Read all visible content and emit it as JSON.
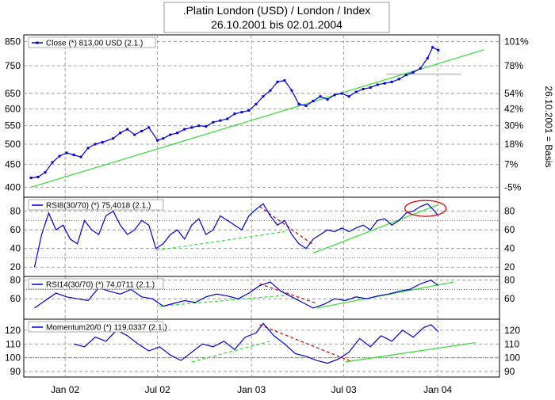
{
  "title": {
    "line1": ".Platin London (USD) / London / Index",
    "line2": "26.10.2001 bis 02.01.2004"
  },
  "right_axis_label": "26.10.2001 = Basis",
  "x_axis": {
    "labels": [
      "Jan 02",
      "Jul 02",
      "Jan 03",
      "Jul 03",
      "Jan 04"
    ]
  },
  "colors": {
    "price_line": "#0000cc",
    "trend_green": "#33dd33",
    "trend_red": "#cc0000",
    "grid": "#888888",
    "reference_gray": "#bbbbbb"
  },
  "chart_data": [
    {
      "type": "line",
      "panel": "price",
      "legend": "Close (*) 813,00 USD (2.1.)",
      "y_scale": "log",
      "ylim": [
        380,
        880
      ],
      "left_ticks": [
        400,
        450,
        500,
        550,
        600,
        650,
        750,
        850
      ],
      "right_ticks": [
        "-5%",
        "7%",
        "18%",
        "30%",
        "42%",
        "54%",
        "78%",
        "101%"
      ],
      "series": [
        {
          "x": [
            "2001-10-26",
            "2001-11-09",
            "2001-11-23",
            "2001-12-07",
            "2001-12-21",
            "2002-01-04",
            "2002-01-18",
            "2002-02-01",
            "2002-02-15",
            "2002-03-01",
            "2002-03-15",
            "2002-04-05",
            "2002-04-19",
            "2002-05-03",
            "2002-05-17",
            "2002-05-31",
            "2002-06-14",
            "2002-07-01",
            "2002-07-12",
            "2002-07-26",
            "2002-08-09",
            "2002-08-23",
            "2002-09-06",
            "2002-09-20",
            "2002-10-04",
            "2002-10-18",
            "2002-11-01",
            "2002-11-15",
            "2002-11-29",
            "2002-12-13",
            "2002-12-27",
            "2003-01-10",
            "2003-01-24",
            "2003-02-07",
            "2003-02-21",
            "2003-03-07",
            "2003-03-21",
            "2003-04-04",
            "2003-04-18",
            "2003-05-02",
            "2003-05-16",
            "2003-05-30",
            "2003-06-13",
            "2003-06-27",
            "2003-07-11",
            "2003-07-25",
            "2003-08-08",
            "2003-08-22",
            "2003-09-05",
            "2003-09-19",
            "2003-10-03",
            "2003-10-17",
            "2003-10-31",
            "2003-11-14",
            "2003-11-28",
            "2003-12-12",
            "2003-12-22",
            "2004-01-02"
          ],
          "y": [
            420,
            422,
            432,
            455,
            470,
            478,
            473,
            468,
            490,
            500,
            505,
            515,
            530,
            540,
            525,
            535,
            545,
            510,
            515,
            525,
            530,
            540,
            545,
            550,
            548,
            560,
            565,
            570,
            585,
            590,
            595,
            615,
            640,
            660,
            690,
            695,
            660,
            615,
            610,
            625,
            640,
            630,
            645,
            650,
            640,
            655,
            665,
            670,
            680,
            685,
            690,
            700,
            715,
            725,
            740,
            780,
            825,
            813
          ]
        }
      ],
      "trendlines": [
        {
          "color": "green",
          "x": [
            "2001-10-26",
            "2004-04-01"
          ],
          "y": [
            400,
            815
          ]
        }
      ],
      "reference_lines": [
        {
          "color": "gray",
          "x": [
            "2003-09-22",
            "2004-02-15"
          ],
          "y": [
            718,
            718
          ]
        }
      ]
    },
    {
      "type": "line",
      "panel": "RSI8",
      "legend": "RSI8(30/70) (*) 75,4018 (2.1.)",
      "ylim": [
        10,
        95
      ],
      "left_ticks": [
        20,
        40,
        60,
        80
      ],
      "right_ticks": [
        20,
        40,
        60,
        80
      ],
      "threshold_lines": [
        30,
        70
      ],
      "series": [
        {
          "x": [
            "2001-11-02",
            "2001-11-16",
            "2001-11-30",
            "2001-12-14",
            "2001-12-28",
            "2002-01-11",
            "2002-01-25",
            "2002-02-08",
            "2002-02-22",
            "2002-03-08",
            "2002-03-22",
            "2002-04-05",
            "2002-04-19",
            "2002-05-03",
            "2002-05-17",
            "2002-05-31",
            "2002-06-14",
            "2002-06-28",
            "2002-07-12",
            "2002-07-26",
            "2002-08-09",
            "2002-08-23",
            "2002-09-06",
            "2002-09-20",
            "2002-10-04",
            "2002-10-18",
            "2002-11-01",
            "2002-11-15",
            "2002-11-29",
            "2002-12-13",
            "2002-12-27",
            "2003-01-10",
            "2003-01-24",
            "2003-02-07",
            "2003-02-21",
            "2003-03-07",
            "2003-03-21",
            "2003-04-04",
            "2003-04-18",
            "2003-05-02",
            "2003-05-16",
            "2003-05-30",
            "2003-06-13",
            "2003-06-27",
            "2003-07-11",
            "2003-07-25",
            "2003-08-08",
            "2003-08-22",
            "2003-09-05",
            "2003-09-19",
            "2003-10-03",
            "2003-10-17",
            "2003-10-31",
            "2003-11-14",
            "2003-11-28",
            "2003-12-12",
            "2003-12-26",
            "2004-01-02"
          ],
          "y": [
            20,
            55,
            78,
            60,
            65,
            50,
            45,
            70,
            60,
            55,
            75,
            80,
            65,
            55,
            60,
            70,
            65,
            40,
            45,
            55,
            60,
            50,
            65,
            72,
            55,
            60,
            75,
            70,
            65,
            60,
            75,
            82,
            88,
            75,
            65,
            70,
            55,
            45,
            40,
            50,
            55,
            60,
            58,
            62,
            58,
            62,
            65,
            60,
            70,
            72,
            65,
            70,
            78,
            80,
            85,
            88,
            80,
            75
          ]
        }
      ],
      "trendlines": [
        {
          "color": "green",
          "x": [
            "2002-06-28",
            "2003-03-07"
          ],
          "y": [
            38,
            58
          ]
        },
        {
          "color": "red",
          "x": [
            "2003-01-17",
            "2003-05-02"
          ],
          "y": [
            85,
            44
          ]
        },
        {
          "color": "green",
          "x": [
            "2003-05-02",
            "2004-01-02"
          ],
          "y": [
            35,
            87
          ]
        }
      ],
      "annotations": [
        {
          "shape": "ellipse",
          "color": "red",
          "x": "2003-12-08",
          "y": 83
        }
      ]
    },
    {
      "type": "line",
      "panel": "RSI14",
      "legend": "RSI14(30/70) (*) 74,0711 (2.1.)",
      "ylim": [
        38,
        84
      ],
      "left_ticks": [
        60,
        80
      ],
      "right_ticks": [
        60,
        80
      ],
      "threshold_lines": [
        70
      ],
      "series": [
        {
          "x": [
            "2001-11-02",
            "2001-11-23",
            "2001-12-14",
            "2002-01-04",
            "2002-01-25",
            "2002-02-15",
            "2002-03-08",
            "2002-03-29",
            "2002-04-19",
            "2002-05-10",
            "2002-05-31",
            "2002-06-21",
            "2002-07-12",
            "2002-08-02",
            "2002-08-23",
            "2002-09-13",
            "2002-10-04",
            "2002-10-25",
            "2002-11-15",
            "2002-12-06",
            "2002-12-27",
            "2003-01-17",
            "2003-02-07",
            "2003-02-28",
            "2003-03-21",
            "2003-04-11",
            "2003-05-02",
            "2003-05-23",
            "2003-06-13",
            "2003-07-04",
            "2003-07-25",
            "2003-08-15",
            "2003-09-05",
            "2003-09-26",
            "2003-10-17",
            "2003-11-07",
            "2003-11-28",
            "2003-12-19",
            "2004-01-02"
          ],
          "y": [
            50,
            58,
            66,
            62,
            60,
            58,
            72,
            68,
            65,
            70,
            62,
            60,
            52,
            55,
            58,
            56,
            62,
            65,
            63,
            60,
            66,
            74,
            78,
            68,
            62,
            56,
            50,
            54,
            60,
            58,
            62,
            60,
            63,
            65,
            68,
            70,
            76,
            80,
            74
          ]
        }
      ],
      "trendlines": [
        {
          "color": "green",
          "x": [
            "2002-07-05",
            "2003-03-14"
          ],
          "y": [
            52,
            64
          ]
        },
        {
          "color": "red",
          "x": [
            "2003-01-17",
            "2003-05-09"
          ],
          "y": [
            76,
            55
          ]
        },
        {
          "color": "green",
          "x": [
            "2003-05-09",
            "2004-02-01"
          ],
          "y": [
            50,
            78
          ]
        }
      ]
    },
    {
      "type": "line",
      "panel": "Momentum",
      "legend": "Momentum20/0 (*) 119,0337 (2.1.)",
      "ylim": [
        86,
        128
      ],
      "left_ticks": [
        90,
        100,
        110,
        120
      ],
      "right_ticks": [
        90,
        100,
        110,
        120
      ],
      "threshold_lines": [
        100
      ],
      "series": [
        {
          "x": [
            "2002-01-18",
            "2002-02-08",
            "2002-03-01",
            "2002-03-22",
            "2002-04-12",
            "2002-05-03",
            "2002-05-24",
            "2002-06-14",
            "2002-07-05",
            "2002-07-26",
            "2002-08-16",
            "2002-09-06",
            "2002-09-27",
            "2002-10-18",
            "2002-11-08",
            "2002-11-29",
            "2002-12-20",
            "2003-01-10",
            "2003-01-24",
            "2003-02-14",
            "2003-03-07",
            "2003-03-28",
            "2003-04-18",
            "2003-05-09",
            "2003-05-30",
            "2003-06-20",
            "2003-07-11",
            "2003-08-01",
            "2003-08-22",
            "2003-09-12",
            "2003-10-03",
            "2003-10-24",
            "2003-11-14",
            "2003-12-05",
            "2003-12-19",
            "2004-01-02"
          ],
          "y": [
            110,
            108,
            115,
            112,
            120,
            116,
            110,
            105,
            108,
            102,
            98,
            104,
            110,
            108,
            112,
            106,
            115,
            118,
            125,
            116,
            110,
            103,
            101,
            98,
            96,
            99,
            104,
            114,
            108,
            116,
            112,
            120,
            115,
            122,
            124,
            119
          ]
        }
      ],
      "trendlines": [
        {
          "color": "green",
          "x": [
            "2002-09-06",
            "2003-02-07"
          ],
          "y": [
            97,
            112
          ]
        },
        {
          "color": "red",
          "x": [
            "2003-01-17",
            "2003-07-18"
          ],
          "y": [
            124,
            97
          ]
        },
        {
          "color": "green",
          "x": [
            "2003-07-04",
            "2004-03-15"
          ],
          "y": [
            97,
            111
          ]
        }
      ]
    }
  ]
}
